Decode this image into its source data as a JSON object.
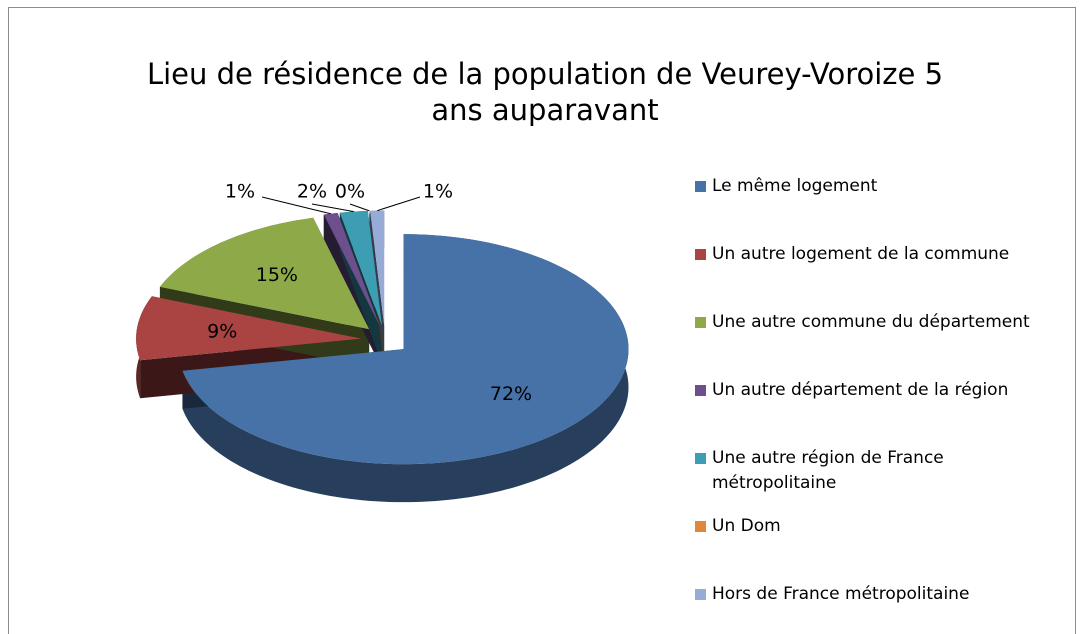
{
  "chart_data": {
    "type": "pie",
    "title": "Lieu de résidence de la population de Veurey-Voroize 5 ans auparavant",
    "categories": [
      "Le même logement",
      "Un autre logement de la commune",
      "Une autre commune du département",
      "Un autre département de la région",
      "Une autre région de France métropolitaine",
      "Un Dom",
      "Hors de France métropolitaine"
    ],
    "values": [
      72,
      9,
      15,
      1,
      2,
      0,
      1
    ],
    "value_labels": [
      "72%",
      "9%",
      "15%",
      "1%",
      "2%",
      "0%",
      "1%"
    ],
    "colors": [
      "#4672a8",
      "#a94442",
      "#8eaa48",
      "#6c4f8c",
      "#3d9db3",
      "#e0883a",
      "#96acd6"
    ],
    "legend": "right"
  }
}
